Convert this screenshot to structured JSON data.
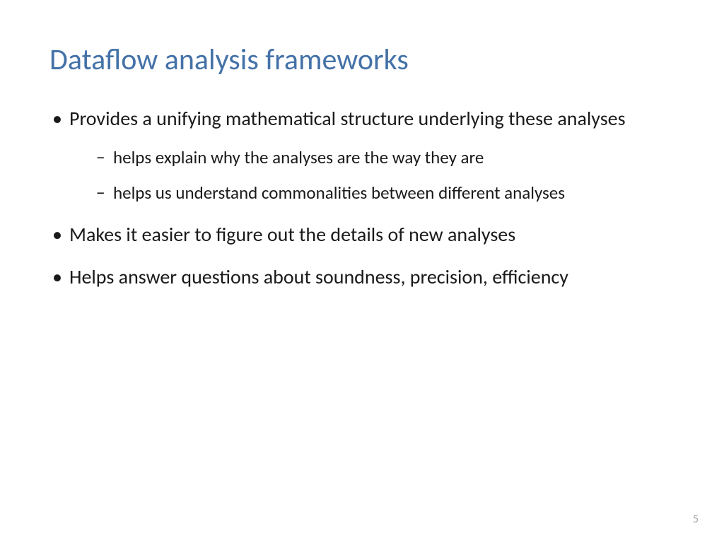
{
  "slide": {
    "title": "Dataflow analysis frameworks",
    "bullets": {
      "b1": "Provides a unifying mathematical structure underlying these analyses",
      "b1_sub1": "helps explain why the analyses are the way they are",
      "b1_sub2": "helps us understand commonalities between different analyses",
      "b2": "Makes it easier to figure out the details of new analyses",
      "b3": "Helps answer questions about soundness, precision, efficiency"
    },
    "page_number": "5"
  },
  "styling": {
    "title_color": "#4472a8",
    "title_fontsize": 42,
    "body_color": "#1a1a1a",
    "body_fontsize": 28,
    "sub_fontsize": 25,
    "page_number_color": "#a6a6a6",
    "background_color": "#ffffff",
    "font_family": "Calibri"
  }
}
